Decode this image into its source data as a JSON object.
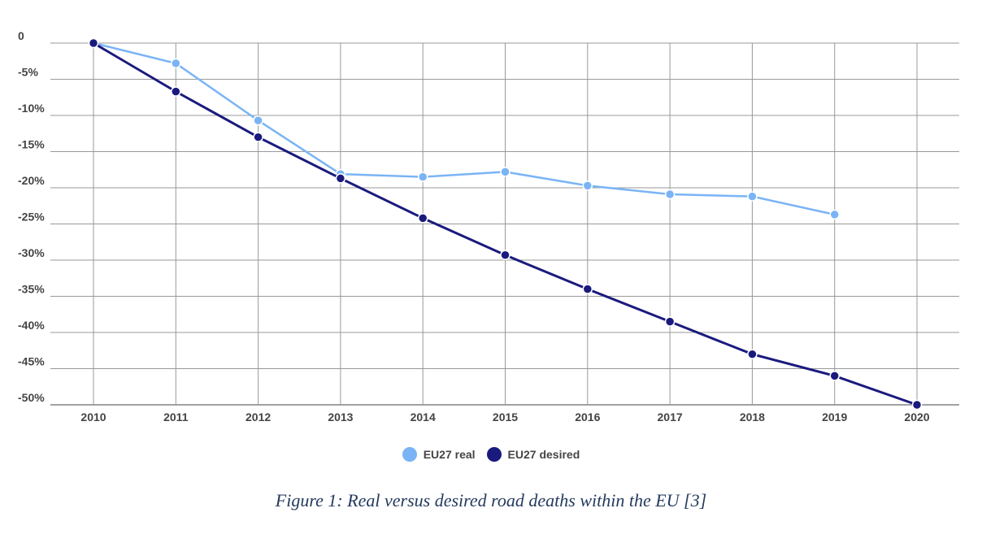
{
  "chart_data": {
    "type": "line",
    "x": [
      "2010",
      "2011",
      "2012",
      "2013",
      "2014",
      "2015",
      "2016",
      "2017",
      "2018",
      "2019",
      "2020"
    ],
    "y_ticks": [
      "0",
      "-5%",
      "-10%",
      "-15%",
      "-20%",
      "-25%",
      "-30%",
      "-35%",
      "-40%",
      "-45%",
      "-50%"
    ],
    "ylim": [
      -50,
      0
    ],
    "grid": true,
    "legend_position": "bottom",
    "series": [
      {
        "name": "EU27 real",
        "color": "#7ab4f5",
        "values": [
          0,
          -2.8,
          -10.7,
          -18.1,
          -18.5,
          -17.8,
          -19.7,
          -20.9,
          -21.2,
          -23.7,
          null
        ]
      },
      {
        "name": "EU27 desired",
        "color": "#1a1a7e",
        "values": [
          0,
          -6.7,
          -13.0,
          -18.7,
          -24.2,
          -29.3,
          -34.0,
          -38.5,
          -43.0,
          -46.0,
          -50.0
        ]
      }
    ]
  },
  "legend": {
    "real": "EU27 real",
    "desired": "EU27 desired"
  },
  "caption": "Figure 1: Real versus desired road deaths within the EU [3]"
}
